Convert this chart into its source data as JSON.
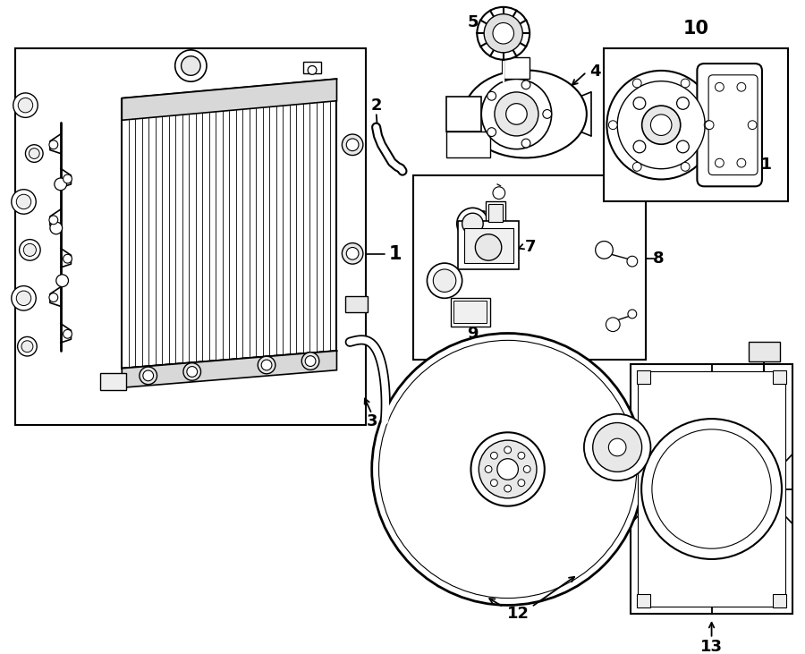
{
  "bg": "#ffffff",
  "lc": "#000000",
  "fig_w": 9.0,
  "fig_h": 7.31,
  "dpi": 100,
  "label_fs": 13,
  "label_fs_big": 15
}
